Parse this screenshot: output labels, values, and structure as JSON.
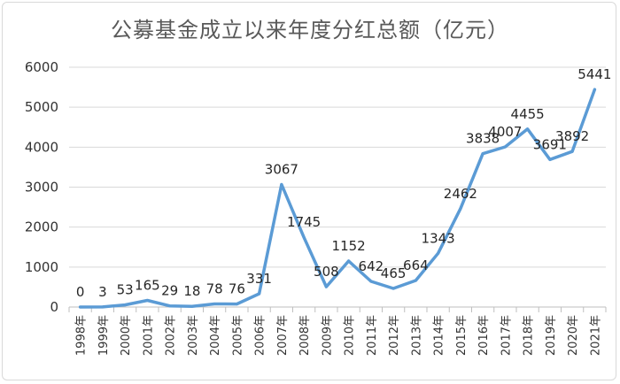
{
  "chart_data": {
    "type": "line",
    "title": "公募基金成立以来年度分红总额（亿元）",
    "categories": [
      "1998年",
      "1999年",
      "2000年",
      "2001年",
      "2002年",
      "2003年",
      "2004年",
      "2005年",
      "2006年",
      "2007年",
      "2008年",
      "2009年",
      "2010年",
      "2011年",
      "2012年",
      "2013年",
      "2014年",
      "2015年",
      "2016年",
      "2017年",
      "2018年",
      "2019年",
      "2020年",
      "2021年"
    ],
    "series": [
      {
        "values": [
          0,
          3,
          53,
          165,
          29,
          18,
          78,
          76,
          331,
          3067,
          1745,
          508,
          1152,
          642,
          465,
          664,
          1343,
          2462,
          3838,
          4007,
          4455,
          3691,
          3892,
          5441
        ]
      }
    ],
    "yticks": [
      0,
      1000,
      2000,
      3000,
      4000,
      5000,
      6000
    ],
    "ylim": [
      0,
      6000
    ],
    "grid": true,
    "line_color": "#5b9bd5",
    "legend": "none"
  }
}
